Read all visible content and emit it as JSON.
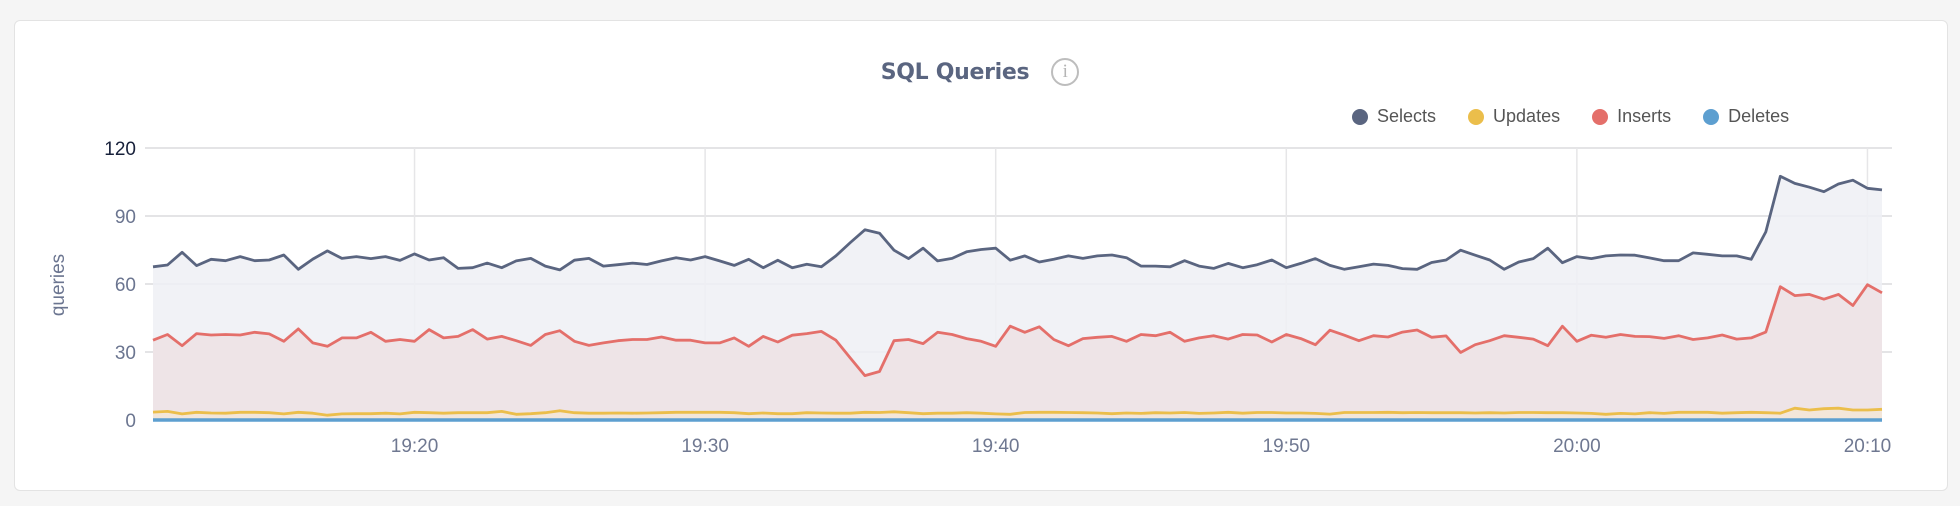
{
  "panel": {
    "title": "SQL Queries",
    "info_icon": "info-circle-icon"
  },
  "chart_data": {
    "type": "area",
    "title": "SQL Queries",
    "ylabel": "queries",
    "xlabel": "",
    "ylim": [
      0,
      120
    ],
    "yticks": [
      "0",
      "30",
      "60",
      "90",
      "120"
    ],
    "xticks": [
      "19:20",
      "19:30",
      "19:40",
      "19:50",
      "20:00",
      "20:10"
    ],
    "xrange": [
      "19:11:00",
      "20:10:30"
    ],
    "grid": true,
    "legend_position": "top-right",
    "x": [
      "19:11:00",
      "19:11:30",
      "19:12:00",
      "19:12:30",
      "19:13:00",
      "19:13:30",
      "19:14:00",
      "19:14:30",
      "19:15:00",
      "19:15:30",
      "19:16:00",
      "19:16:30",
      "19:17:00",
      "19:17:30",
      "19:18:00",
      "19:18:30",
      "19:19:00",
      "19:19:30",
      "19:20:00",
      "19:20:30",
      "19:21:00",
      "19:21:30",
      "19:22:00",
      "19:22:30",
      "19:23:00",
      "19:23:30",
      "19:24:00",
      "19:24:30",
      "19:25:00",
      "19:25:30",
      "19:26:00",
      "19:26:30",
      "19:27:00",
      "19:27:30",
      "19:28:00",
      "19:28:30",
      "19:29:00",
      "19:29:30",
      "19:30:00",
      "19:30:30",
      "19:31:00",
      "19:31:30",
      "19:32:00",
      "19:32:30",
      "19:33:00",
      "19:33:30",
      "19:34:00",
      "19:34:30",
      "19:35:00",
      "19:35:30",
      "19:36:00",
      "19:36:30",
      "19:37:00",
      "19:37:30",
      "19:38:00",
      "19:38:30",
      "19:39:00",
      "19:39:30",
      "19:40:00",
      "19:40:30",
      "19:41:00",
      "19:41:30",
      "19:42:00",
      "19:42:30",
      "19:43:00",
      "19:43:30",
      "19:44:00",
      "19:44:30",
      "19:45:00",
      "19:45:30",
      "19:46:00",
      "19:46:30",
      "19:47:00",
      "19:47:30",
      "19:48:00",
      "19:48:30",
      "19:49:00",
      "19:49:30",
      "19:50:00",
      "19:50:30",
      "19:51:00",
      "19:51:30",
      "19:52:00",
      "19:52:30",
      "19:53:00",
      "19:53:30",
      "19:54:00",
      "19:54:30",
      "19:55:00",
      "19:55:30",
      "19:56:00",
      "19:56:30",
      "19:57:00",
      "19:57:30",
      "19:58:00",
      "19:58:30",
      "19:59:00",
      "19:59:30",
      "20:00:00",
      "20:00:30",
      "20:01:00",
      "20:01:30",
      "20:02:00",
      "20:02:30",
      "20:03:00",
      "20:03:30",
      "20:04:00",
      "20:04:30",
      "20:05:00",
      "20:05:30",
      "20:06:00",
      "20:06:30",
      "20:07:00",
      "20:07:30",
      "20:08:00",
      "20:08:30",
      "20:09:00",
      "20:09:30",
      "20:10:00",
      "20:10:30"
    ],
    "series": [
      {
        "name": "Selects",
        "color": "#5a6580",
        "fill": "#eef0f4",
        "values": [
          67.6,
          68.4,
          74.0,
          68.1,
          70.9,
          70.3,
          72.1,
          70.3,
          70.6,
          72.8,
          66.5,
          71.0,
          74.6,
          71.3,
          72.1,
          71.2,
          72.1,
          70.4,
          73.3,
          70.6,
          71.6,
          66.9,
          67.2,
          69.2,
          67.2,
          70.2,
          71.3,
          67.9,
          66.2,
          70.5,
          71.3,
          67.9,
          68.5,
          69.2,
          68.6,
          70.2,
          71.6,
          70.6,
          72.1,
          70.2,
          68.2,
          70.9,
          67.2,
          70.5,
          67.2,
          68.7,
          67.6,
          72.4,
          78.3,
          83.9,
          82.4,
          74.9,
          71.2,
          75.8,
          70.2,
          71.3,
          74.2,
          75.2,
          75.8,
          70.5,
          72.4,
          69.7,
          70.9,
          72.4,
          71.3,
          72.4,
          72.8,
          71.6,
          67.9,
          67.9,
          67.6,
          70.3,
          67.9,
          66.9,
          69.1,
          67.2,
          68.5,
          70.6,
          67.2,
          69.1,
          71.2,
          68.2,
          66.5,
          67.6,
          68.8,
          68.2,
          66.8,
          66.5,
          69.5,
          70.6,
          74.9,
          72.7,
          70.6,
          66.5,
          69.7,
          71.2,
          75.8,
          69.4,
          72.1,
          71.2,
          72.4,
          72.8,
          72.7,
          71.5,
          70.3,
          70.3,
          73.7,
          73.1,
          72.4,
          72.4,
          70.9,
          83.0,
          107.5,
          104.4,
          102.7,
          100.7,
          104.1,
          105.8,
          102.2,
          101.5
        ]
      },
      {
        "name": "Updates",
        "color": "#ebbe4b",
        "fill": "#f3e6d6",
        "values": [
          3.5,
          3.8,
          2.7,
          3.4,
          3.1,
          3.0,
          3.4,
          3.4,
          3.2,
          2.7,
          3.4,
          3.0,
          2.1,
          2.7,
          2.8,
          2.8,
          3.0,
          2.7,
          3.4,
          3.2,
          3.0,
          3.2,
          3.2,
          3.2,
          3.8,
          2.5,
          2.8,
          3.2,
          4.1,
          3.2,
          3.0,
          3.0,
          3.1,
          3.0,
          3.1,
          3.2,
          3.4,
          3.4,
          3.4,
          3.4,
          3.2,
          2.8,
          3.1,
          2.8,
          2.8,
          3.2,
          3.1,
          3.0,
          3.0,
          3.4,
          3.3,
          3.6,
          3.2,
          2.8,
          3.0,
          3.0,
          3.2,
          3.0,
          2.7,
          2.5,
          3.3,
          3.4,
          3.4,
          3.3,
          3.2,
          3.1,
          2.8,
          3.1,
          2.9,
          3.2,
          3.1,
          3.3,
          2.9,
          3.1,
          3.4,
          3.0,
          3.3,
          3.3,
          3.1,
          3.1,
          2.9,
          2.6,
          3.3,
          3.3,
          3.3,
          3.4,
          3.2,
          3.3,
          3.2,
          3.2,
          3.2,
          3.1,
          3.2,
          3.1,
          3.3,
          3.3,
          3.2,
          3.2,
          3.1,
          2.9,
          2.5,
          2.9,
          2.7,
          3.2,
          2.9,
          3.4,
          3.4,
          3.4,
          3.0,
          3.2,
          3.4,
          3.2,
          3.0,
          5.2,
          4.4,
          5.0,
          5.2,
          4.4,
          4.4,
          4.7
        ]
      },
      {
        "name": "Inserts",
        "color": "#e46f6a",
        "fill": "#ede2e4",
        "values": [
          35.2,
          37.7,
          32.8,
          38.1,
          37.5,
          37.7,
          37.5,
          38.7,
          38.0,
          34.7,
          40.2,
          34.0,
          32.5,
          36.2,
          36.2,
          38.7,
          34.7,
          35.5,
          34.7,
          39.9,
          36.2,
          36.9,
          39.9,
          35.7,
          36.9,
          35.0,
          32.9,
          37.7,
          39.4,
          34.7,
          32.9,
          34.0,
          35.0,
          35.5,
          35.5,
          36.6,
          35.2,
          35.2,
          34.0,
          34.0,
          36.2,
          32.5,
          36.9,
          34.4,
          37.4,
          38.1,
          39.1,
          35.2,
          27.3,
          19.6,
          21.4,
          35.0,
          35.5,
          33.7,
          38.7,
          37.7,
          35.9,
          34.7,
          32.5,
          41.4,
          38.7,
          41.1,
          35.5,
          32.8,
          35.9,
          36.5,
          36.9,
          34.7,
          37.7,
          37.2,
          38.7,
          34.7,
          36.2,
          37.2,
          35.7,
          37.7,
          37.5,
          34.4,
          37.7,
          35.9,
          33.2,
          39.6,
          37.4,
          35.0,
          37.2,
          36.6,
          38.8,
          39.7,
          36.5,
          37.1,
          29.8,
          33.2,
          35.0,
          37.2,
          36.5,
          35.7,
          32.8,
          41.4,
          34.7,
          37.4,
          36.5,
          37.7,
          36.9,
          36.8,
          36.0,
          37.2,
          35.5,
          36.2,
          37.5,
          35.7,
          36.2,
          38.8,
          58.8,
          54.9,
          55.4,
          53.3,
          55.4,
          50.5,
          59.7,
          56.1
        ]
      },
      {
        "name": "Deletes",
        "color": "#5d9fd0",
        "fill": "#dfe9f2",
        "values": [
          0,
          0,
          0,
          0,
          0,
          0,
          0,
          0,
          0,
          0,
          0,
          0,
          0,
          0,
          0,
          0,
          0,
          0,
          0,
          0,
          0,
          0,
          0,
          0,
          0,
          0,
          0,
          0,
          0,
          0,
          0,
          0,
          0,
          0,
          0,
          0,
          0,
          0,
          0,
          0,
          0,
          0,
          0,
          0,
          0,
          0,
          0,
          0,
          0,
          0,
          0,
          0,
          0,
          0,
          0,
          0,
          0,
          0,
          0,
          0,
          0,
          0,
          0,
          0,
          0,
          0,
          0,
          0,
          0,
          0,
          0,
          0,
          0,
          0,
          0,
          0,
          0,
          0,
          0,
          0,
          0,
          0,
          0,
          0,
          0,
          0,
          0,
          0,
          0,
          0,
          0,
          0,
          0,
          0,
          0,
          0,
          0,
          0,
          0,
          0,
          0,
          0,
          0,
          0,
          0,
          0,
          0,
          0,
          0,
          0,
          0,
          0,
          0,
          0,
          0,
          0,
          0,
          0,
          0,
          0
        ]
      }
    ]
  }
}
